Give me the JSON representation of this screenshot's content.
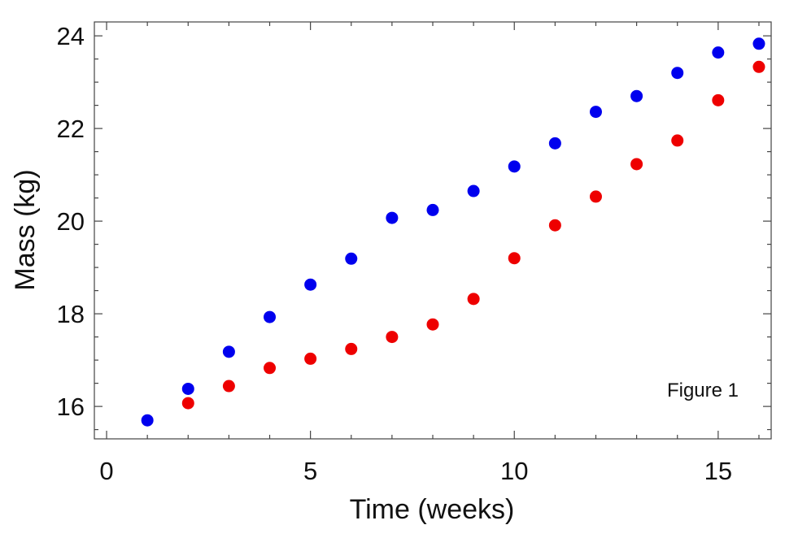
{
  "chart_data": {
    "type": "scatter",
    "title": "",
    "xlabel": "Time (weeks)",
    "ylabel": "Mass (kg)",
    "xlim": [
      -0.3,
      16.3
    ],
    "ylim": [
      15.3,
      24.3
    ],
    "xticks": [
      0,
      5,
      10,
      15
    ],
    "xtick_labels": [
      "0",
      "5",
      "10",
      "15"
    ],
    "yticks": [
      16,
      18,
      20,
      22,
      24
    ],
    "ytick_labels": [
      "16",
      "18",
      "20",
      "22",
      "24"
    ],
    "grid": false,
    "annotations": [
      {
        "text": "Figure 1",
        "position": "bottom-right"
      }
    ],
    "series": [
      {
        "color": "#0000ee",
        "points": [
          [
            1,
            15.7
          ],
          [
            2,
            16.38
          ],
          [
            3,
            17.18
          ],
          [
            4,
            17.93
          ],
          [
            5,
            18.63
          ],
          [
            6,
            19.19
          ],
          [
            7,
            20.07
          ],
          [
            8,
            20.24
          ],
          [
            9,
            20.65
          ],
          [
            10,
            21.18
          ],
          [
            11,
            21.68
          ],
          [
            12,
            22.36
          ],
          [
            13,
            22.7
          ],
          [
            14,
            23.2
          ],
          [
            15,
            23.64
          ],
          [
            16,
            23.83
          ]
        ]
      },
      {
        "color": "#ee0000",
        "points": [
          [
            2,
            16.07
          ],
          [
            3,
            16.44
          ],
          [
            4,
            16.83
          ],
          [
            5,
            17.03
          ],
          [
            6,
            17.24
          ],
          [
            7,
            17.5
          ],
          [
            8,
            17.77
          ],
          [
            9,
            18.32
          ],
          [
            10,
            19.2
          ],
          [
            11,
            19.91
          ],
          [
            12,
            20.53
          ],
          [
            13,
            21.23
          ],
          [
            14,
            21.74
          ],
          [
            15,
            22.61
          ],
          [
            16,
            23.33
          ]
        ]
      }
    ]
  }
}
